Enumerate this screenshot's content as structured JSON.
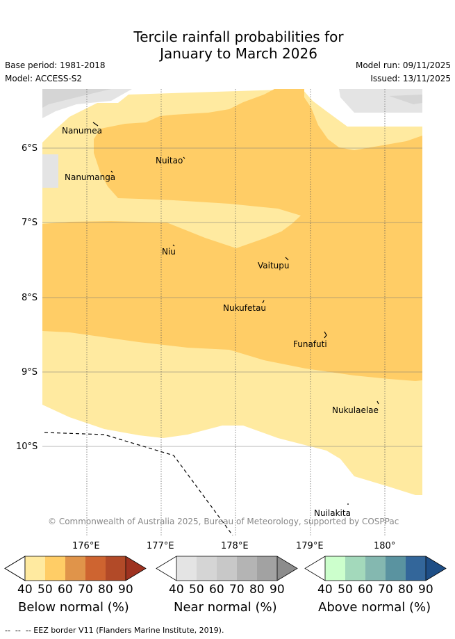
{
  "title": {
    "line1": "Tercile rainfall probabilities for",
    "line2": "January to March 2026"
  },
  "meta": {
    "base_period": "Base period: 1981-2018",
    "model": "Model: ACCESS-S2",
    "model_run": "Model run: 09/11/2025",
    "issued": "Issued: 13/11/2025"
  },
  "map": {
    "lat_labels": [
      "6°S",
      "7°S",
      "8°S",
      "9°S",
      "10°S"
    ],
    "lon_labels": [
      "176°E",
      "177°E",
      "178°E",
      "179°E",
      "180°"
    ],
    "places": [
      "Nanumea",
      "Nuitao",
      "Nanumanga",
      "Niu",
      "Vaitupu",
      "Nukufetau",
      "Funafuti",
      "Nukulaelae",
      "Nuilakita"
    ],
    "copyright": "© Commonwealth of Australia 2025, Bureau of Meteorology, supported by COSPPac",
    "colors": {
      "below_40_50": "#ffeaa0",
      "below_50_60": "#ffcd66",
      "near_40_50": "#e4e4e4",
      "background": "#ffffff"
    }
  },
  "colorbars": [
    {
      "title": "Below normal (%)",
      "ticks": [
        "40",
        "50",
        "60",
        "70",
        "80",
        "90"
      ],
      "colors": [
        "#ffeaa0",
        "#ffcd66",
        "#e0944a",
        "#ce6430",
        "#b24a28",
        "#9e3220"
      ]
    },
    {
      "title": "Near normal (%)",
      "ticks": [
        "40",
        "50",
        "60",
        "70",
        "80",
        "90"
      ],
      "colors": [
        "#e4e4e4",
        "#d5d5d5",
        "#c8c8c8",
        "#b4b4b4",
        "#a2a2a2",
        "#8c8c8c"
      ]
    },
    {
      "title": "Above normal (%)",
      "ticks": [
        "40",
        "50",
        "60",
        "70",
        "80",
        "90"
      ],
      "colors": [
        "#ccffcc",
        "#a3d9bb",
        "#84b8b0",
        "#5a93a0",
        "#33669a",
        "#1e4e86"
      ]
    }
  ],
  "footer": {
    "eez_legend": "-- EEZ border V11 (Flanders Marine Institute, 2019)."
  }
}
